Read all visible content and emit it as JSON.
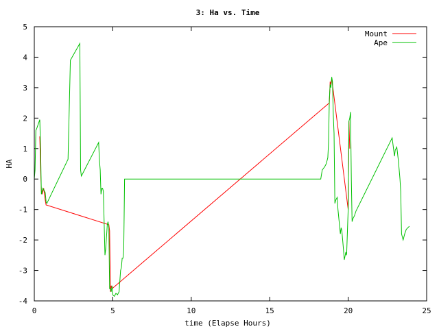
{
  "chart_data": {
    "type": "line",
    "title": "3: Ha vs. Time",
    "xlabel": "time (Elapse Hours)",
    "ylabel": "HA",
    "xlim": [
      0,
      25
    ],
    "ylim": [
      -4,
      5
    ],
    "xticks": [
      0,
      5,
      10,
      15,
      20,
      25
    ],
    "yticks": [
      -4,
      -3,
      -2,
      -1,
      0,
      1,
      2,
      3,
      4,
      5
    ],
    "grid": false,
    "legend_position": "top-right",
    "series": [
      {
        "name": "Mount",
        "color": "#ff0000",
        "x": [
          0.35,
          0.4,
          0.45,
          0.5,
          0.6,
          0.7,
          0.75,
          4.75,
          4.8,
          4.85,
          4.9,
          4.95,
          18.8,
          18.85,
          18.9,
          18.95,
          20.0,
          20.05,
          20.1
        ],
        "y": [
          1.4,
          0.3,
          -0.4,
          -0.5,
          -0.3,
          -0.7,
          -0.85,
          -1.5,
          -1.7,
          -3.7,
          -3.5,
          -3.6,
          2.5,
          3.2,
          3.1,
          3.3,
          -1.0,
          1.9,
          1.0
        ]
      },
      {
        "name": "Ape",
        "color": "#00c000",
        "x": [
          0.0,
          0.05,
          0.1,
          0.15,
          0.35,
          0.4,
          0.45,
          0.55,
          0.65,
          0.7,
          0.75,
          0.8,
          2.15,
          2.3,
          2.35,
          2.9,
          2.95,
          3.0,
          3.05,
          4.1,
          4.15,
          4.2,
          4.25,
          4.3,
          4.35,
          4.4,
          4.5,
          4.55,
          4.65,
          4.7,
          4.75,
          4.8,
          4.85,
          4.9,
          4.95,
          5.0,
          5.1,
          5.2,
          5.3,
          5.35,
          5.4,
          5.5,
          5.55,
          5.6,
          5.65,
          5.7,
          5.75,
          5.8,
          18.25,
          18.35,
          18.5,
          18.6,
          18.7,
          18.75,
          18.8,
          18.85,
          18.9,
          18.95,
          19.0,
          19.05,
          19.1,
          19.15,
          19.2,
          19.3,
          19.35,
          19.5,
          19.55,
          19.6,
          19.7,
          19.75,
          19.85,
          19.9,
          20.0,
          20.05,
          20.1,
          20.15,
          20.2,
          20.25,
          20.3,
          20.4,
          20.5,
          22.8,
          22.95,
          23.0,
          23.1,
          23.2,
          23.3,
          23.35,
          23.4,
          23.5,
          23.6,
          23.7,
          23.8,
          23.9
        ],
        "y": [
          0.0,
          0.3,
          1.6,
          1.65,
          1.95,
          1.0,
          -0.5,
          -0.3,
          -0.4,
          -0.45,
          -0.75,
          -0.8,
          0.65,
          3.9,
          3.95,
          4.45,
          0.3,
          0.1,
          0.15,
          1.2,
          0.6,
          0.3,
          -0.5,
          -0.3,
          -0.3,
          -0.4,
          -2.5,
          -2.3,
          -1.5,
          -1.4,
          -1.6,
          -3.6,
          -3.6,
          -3.7,
          -3.5,
          -3.8,
          -3.85,
          -3.75,
          -3.8,
          -3.75,
          -3.7,
          -3.0,
          -2.9,
          -2.6,
          -2.6,
          -2.3,
          0.0,
          0.0,
          0.0,
          0.3,
          0.4,
          0.5,
          0.7,
          1.2,
          2.6,
          3.1,
          3.0,
          3.35,
          3.2,
          2.1,
          1.5,
          -0.8,
          -0.7,
          -0.6,
          -1.0,
          -1.8,
          -1.6,
          -1.7,
          -2.3,
          -2.65,
          -2.4,
          -2.5,
          -1.0,
          1.9,
          2.0,
          2.2,
          0.0,
          -1.4,
          -1.3,
          -1.2,
          -1.05,
          1.35,
          0.75,
          0.95,
          1.05,
          0.6,
          0.0,
          -0.4,
          -1.8,
          -2.0,
          -1.8,
          -1.65,
          -1.6,
          -1.55
        ]
      }
    ]
  }
}
